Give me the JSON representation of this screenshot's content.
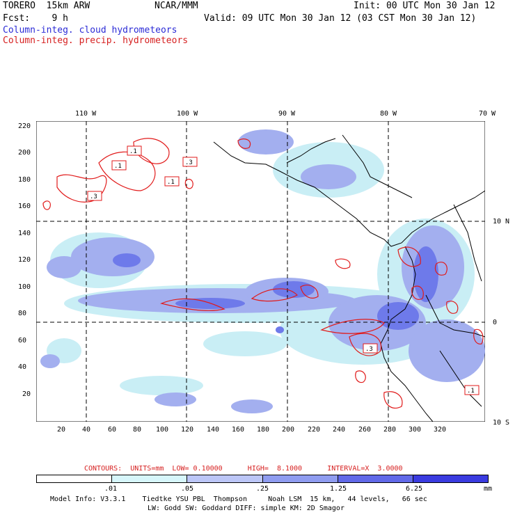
{
  "header": {
    "model": "TORERO  15km ARW",
    "org": "NCAR/MMM",
    "init": "Init: 00 UTC Mon 30 Jan 12",
    "fcst": "Fcst:    9 h",
    "valid": "Valid: 09 UTC Mon 30 Jan 12 (03 CST Mon 30 Jan 12)",
    "field1": "Column-integ. cloud hydrometeors",
    "field2": "Column-integ. precip. hydrometeors"
  },
  "map": {
    "top_lon_labels": [
      "110 W",
      "100 W",
      "90 W",
      "80 W",
      "70 W"
    ],
    "right_lat_labels": [
      "10 N",
      "0",
      "10 S"
    ],
    "y_ticks": [
      "220",
      "200",
      "180",
      "160",
      "140",
      "120",
      "100",
      "80",
      "60",
      "40",
      "20"
    ],
    "x_ticks": [
      "20",
      "40",
      "60",
      "80",
      "100",
      "120",
      "140",
      "160",
      "180",
      "200",
      "220",
      "240",
      "260",
      "280",
      "300",
      "320"
    ],
    "contour_boxes": [
      ".1",
      ".1",
      ".3",
      ".1",
      ".3",
      ".3",
      ".1"
    ],
    "colors": {
      "fill_light": "#bfe9f2",
      "fill_mid": "#9aa9f0",
      "fill_dark": "#6b74ea",
      "contour": "#e11a1a",
      "coast": "#000000"
    }
  },
  "contours_line": "CONTOURS:  UNITS=mm  LOW= 0.10000      HIGH=  8.1000      INTERVAL=X  3.0000",
  "colorbar": {
    "labels": [
      ".01",
      ".05",
      ".25",
      "1.25",
      "6.25"
    ],
    "unit": "mm",
    "colors": [
      "#ffffff",
      "#d7f6fb",
      "#bcc6f7",
      "#8f9cf0",
      "#6169e8",
      "#3a3be0"
    ]
  },
  "footer": {
    "line1": "Model Info: V3.3.1    Tiedtke YSU PBL  Thompson     Noah LSM  15 km,   44 levels,   66 sec",
    "line2": "LW: Godd SW: Goddard DIFF: simple KM: 2D Smagor"
  }
}
